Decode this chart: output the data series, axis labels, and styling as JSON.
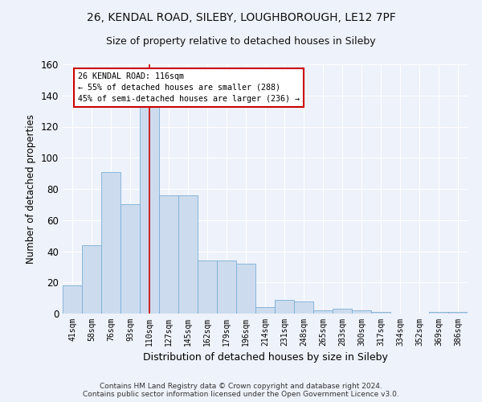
{
  "title_line1": "26, KENDAL ROAD, SILEBY, LOUGHBOROUGH, LE12 7PF",
  "title_line2": "Size of property relative to detached houses in Sileby",
  "xlabel": "Distribution of detached houses by size in Sileby",
  "ylabel": "Number of detached properties",
  "categories": [
    "41sqm",
    "58sqm",
    "76sqm",
    "93sqm",
    "110sqm",
    "127sqm",
    "145sqm",
    "162sqm",
    "179sqm",
    "196sqm",
    "214sqm",
    "231sqm",
    "248sqm",
    "265sqm",
    "283sqm",
    "300sqm",
    "317sqm",
    "334sqm",
    "352sqm",
    "369sqm",
    "386sqm"
  ],
  "values": [
    18,
    44,
    91,
    70,
    133,
    76,
    76,
    34,
    34,
    32,
    4,
    9,
    8,
    2,
    3,
    2,
    1,
    0,
    0,
    1,
    1
  ],
  "bar_color": "#ccdcee",
  "bar_edge_color": "#7aadd4",
  "annotation_text": "26 KENDAL ROAD: 116sqm\n← 55% of detached houses are smaller (288)\n45% of semi-detached houses are larger (236) →",
  "annotation_box_color": "#ffffff",
  "annotation_box_edge": "#cc0000",
  "vline_color": "#cc0000",
  "vline_x": 4,
  "ylim": [
    0,
    160
  ],
  "yticks": [
    0,
    20,
    40,
    60,
    80,
    100,
    120,
    140,
    160
  ],
  "footer_line1": "Contains HM Land Registry data © Crown copyright and database right 2024.",
  "footer_line2": "Contains public sector information licensed under the Open Government Licence v3.0.",
  "background_color": "#eef2fa",
  "grid_color": "#ffffff",
  "title1_fontsize": 10,
  "title2_fontsize": 9
}
